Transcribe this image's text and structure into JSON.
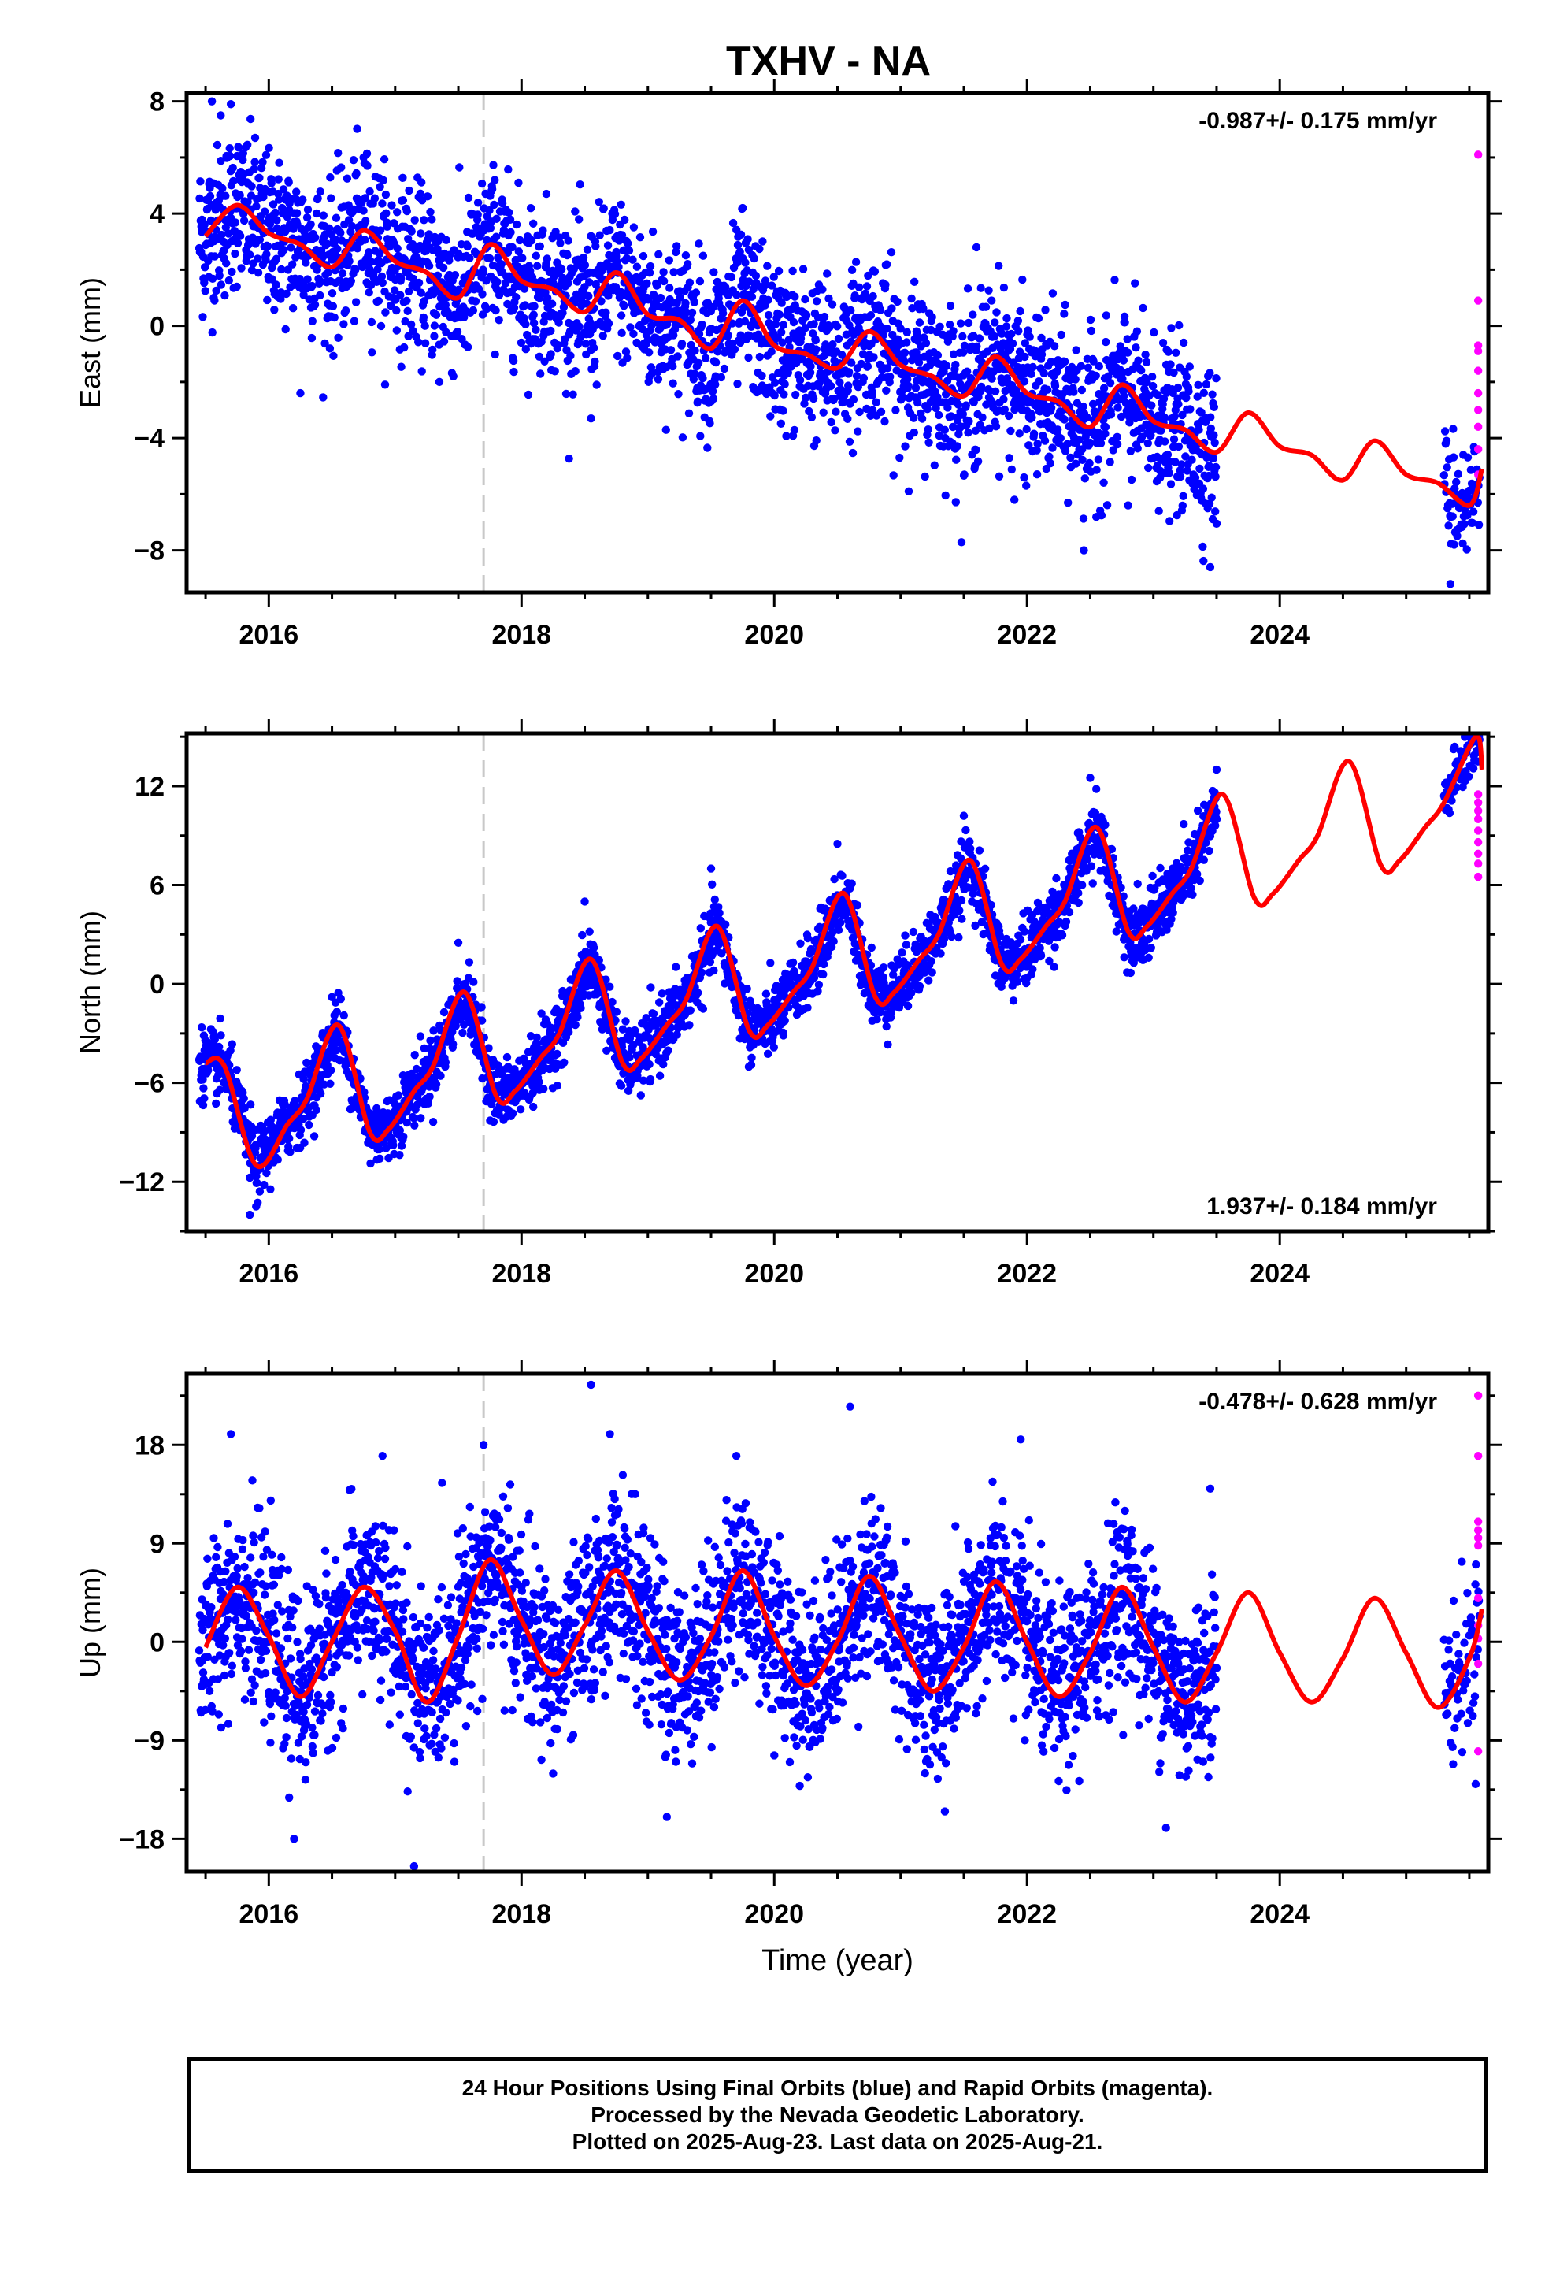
{
  "title": "TXHV - NA",
  "footer": {
    "line1": "24 Hour Positions Using Final Orbits (blue) and Rapid Orbits (magenta).",
    "line2": "Processed by the Nevada Geodetic Laboratory.",
    "line3": "Plotted on 2025-Aug-23. Last data on 2025-Aug-21."
  },
  "colors": {
    "final": "#0000ff",
    "rapid": "#ff00ff",
    "model": "#ff0000",
    "event": "#c8c8c8"
  },
  "chart_data": [
    {
      "type": "scatter",
      "component": "East",
      "ylabel": "East (mm)",
      "xlabel": "",
      "xlim": [
        2015.35,
        2025.65
      ],
      "ylim": [
        -9.5,
        8.3
      ],
      "yticks": [
        -8,
        -4,
        0,
        4,
        8
      ],
      "xticks": [
        2016,
        2018,
        2020,
        2022,
        2024
      ],
      "rate_label": "-0.987+/- 0.175 mm/yr",
      "rate_position": "top-right",
      "event_line_x": 2017.7,
      "model": {
        "x": [
          2015.5,
          2015.75,
          2016.0,
          2016.25,
          2016.5,
          2016.75,
          2017.0,
          2017.25,
          2017.5,
          2017.75,
          2018.0,
          2018.25,
          2018.5,
          2018.75,
          2019.0,
          2019.25,
          2019.5,
          2019.75,
          2020.0,
          2020.25,
          2020.5,
          2020.75,
          2021.0,
          2021.25,
          2021.5,
          2021.75,
          2022.0,
          2022.25,
          2022.5,
          2022.75,
          2023.0,
          2023.25,
          2023.5,
          2023.75,
          2024.0,
          2024.25,
          2024.5,
          2024.75,
          2025.0,
          2025.25,
          2025.5,
          2025.6
        ],
        "y": [
          3.2,
          4.3,
          3.3,
          2.9,
          2.1,
          3.4,
          2.3,
          1.9,
          1.0,
          2.9,
          1.6,
          1.3,
          0.5,
          1.9,
          0.4,
          0.2,
          -0.8,
          0.9,
          -0.7,
          -1.0,
          -1.5,
          -0.2,
          -1.4,
          -1.8,
          -2.5,
          -1.1,
          -2.4,
          -2.7,
          -3.6,
          -2.1,
          -3.4,
          -3.7,
          -4.5,
          -3.1,
          -4.3,
          -4.6,
          -5.5,
          -4.1,
          -5.3,
          -5.6,
          -6.4,
          -5.1
        ]
      },
      "final": {
        "segments": [
          {
            "x": [
              2015.45,
              2023.5
            ],
            "stride": 0.0028,
            "noise": 1.4
          },
          {
            "x": [
              2025.3,
              2025.58
            ],
            "stride": 0.004,
            "noise": 1.1
          }
        ],
        "outliers": [
          {
            "x": 2015.55,
            "y": 8.0
          },
          {
            "x": 2015.62,
            "y": 7.5
          },
          {
            "x": 2015.7,
            "y": 7.9
          },
          {
            "x": 2016.25,
            "y": -2.4
          },
          {
            "x": 2016.75,
            "y": 6.0
          },
          {
            "x": 2017.35,
            "y": -2.0
          },
          {
            "x": 2018.55,
            "y": -3.3
          },
          {
            "x": 2019.75,
            "y": 4.2
          },
          {
            "x": 2021.6,
            "y": 2.8
          },
          {
            "x": 2021.9,
            "y": -6.2
          },
          {
            "x": 2022.45,
            "y": -8.0
          },
          {
            "x": 2022.8,
            "y": -6.4
          },
          {
            "x": 2023.45,
            "y": -8.6
          },
          {
            "x": 2025.35,
            "y": -9.2
          }
        ]
      },
      "rapid": {
        "x": 2025.57,
        "y": [
          6.1,
          0.9,
          -0.7,
          -0.9,
          -1.6,
          -2.4,
          -3.0,
          -3.6,
          -4.4,
          -5.3
        ]
      }
    },
    {
      "type": "scatter",
      "component": "North",
      "ylabel": "North (mm)",
      "xlabel": "",
      "xlim": [
        2015.35,
        2025.65
      ],
      "ylim": [
        -15,
        15.2
      ],
      "yticks": [
        -12,
        -6,
        0,
        6,
        12
      ],
      "xticks": [
        2016,
        2018,
        2020,
        2022,
        2024
      ],
      "rate_label": "1.937+/- 0.184 mm/yr",
      "rate_position": "bottom-right",
      "event_line_x": 2017.7,
      "model": {
        "x": [
          2015.5,
          2015.65,
          2015.9,
          2016.15,
          2016.3,
          2016.55,
          2016.8,
          2016.95,
          2017.15,
          2017.3,
          2017.55,
          2017.8,
          2017.95,
          2018.15,
          2018.3,
          2018.55,
          2018.8,
          2018.95,
          2019.15,
          2019.3,
          2019.55,
          2019.8,
          2019.95,
          2020.15,
          2020.3,
          2020.55,
          2020.8,
          2020.95,
          2021.15,
          2021.3,
          2021.55,
          2021.8,
          2021.95,
          2022.15,
          2022.3,
          2022.55,
          2022.8,
          2022.95,
          2023.15,
          2023.3,
          2023.55,
          2023.8,
          2023.95,
          2024.15,
          2024.3,
          2024.55,
          2024.8,
          2024.95,
          2025.15,
          2025.3,
          2025.55,
          2025.6
        ],
        "y": [
          -4.8,
          -5.0,
          -11.0,
          -8.5,
          -7.0,
          -2.5,
          -9.0,
          -8.8,
          -6.5,
          -5.0,
          -0.5,
          -6.8,
          -6.5,
          -4.5,
          -3.0,
          1.5,
          -4.8,
          -4.5,
          -2.5,
          -1.0,
          3.5,
          -2.8,
          -2.5,
          -0.5,
          1.0,
          5.5,
          -0.8,
          -0.5,
          1.5,
          3.0,
          7.5,
          1.2,
          1.5,
          3.5,
          5.0,
          9.5,
          3.2,
          3.5,
          5.5,
          7.0,
          11.5,
          5.2,
          5.5,
          7.5,
          9.0,
          13.5,
          7.2,
          7.5,
          9.5,
          11.0,
          15.0,
          13.0
        ]
      },
      "final": {
        "segments": [
          {
            "x": [
              2015.45,
              2023.5
            ],
            "stride": 0.0028,
            "noise": 1.0
          },
          {
            "x": [
              2025.3,
              2025.58
            ],
            "stride": 0.004,
            "noise": 0.9
          }
        ],
        "outliers": [
          {
            "x": 2015.85,
            "y": -14.0
          },
          {
            "x": 2015.9,
            "y": -13.5
          },
          {
            "x": 2016.5,
            "y": -0.8
          },
          {
            "x": 2017.5,
            "y": 2.5
          },
          {
            "x": 2018.5,
            "y": 5.0
          },
          {
            "x": 2019.5,
            "y": 7.0
          },
          {
            "x": 2020.5,
            "y": 8.5
          },
          {
            "x": 2021.5,
            "y": 10.2
          },
          {
            "x": 2022.5,
            "y": 12.5
          },
          {
            "x": 2023.5,
            "y": 13.0
          }
        ]
      },
      "rapid": {
        "x": 2025.57,
        "y": [
          11.5,
          11.0,
          10.5,
          10.0,
          9.3,
          8.6,
          7.9,
          7.3,
          6.5
        ]
      }
    },
    {
      "type": "scatter",
      "component": "Up",
      "ylabel": "Up (mm)",
      "xlabel": "Time (year)",
      "xlim": [
        2015.35,
        2025.65
      ],
      "ylim": [
        -21,
        24.5
      ],
      "yticks": [
        -18,
        -9,
        0,
        9,
        18
      ],
      "xticks": [
        2016,
        2018,
        2020,
        2022,
        2024
      ],
      "rate_label": "-0.478+/- 0.628 mm/yr",
      "rate_position": "top-right",
      "event_line_x": 2017.7,
      "model": {
        "x": [
          2015.5,
          2015.75,
          2016.0,
          2016.25,
          2016.5,
          2016.75,
          2017.0,
          2017.25,
          2017.5,
          2017.75,
          2018.0,
          2018.25,
          2018.5,
          2018.75,
          2019.0,
          2019.25,
          2019.5,
          2019.75,
          2020.0,
          2020.25,
          2020.5,
          2020.75,
          2021.0,
          2021.25,
          2021.5,
          2021.75,
          2022.0,
          2022.25,
          2022.5,
          2022.75,
          2023.0,
          2023.25,
          2023.5,
          2023.75,
          2024.0,
          2024.25,
          2024.5,
          2024.75,
          2025.0,
          2025.25,
          2025.5,
          2025.6
        ],
        "y": [
          -0.5,
          5.0,
          0.5,
          -5.0,
          0.0,
          5.0,
          1.0,
          -5.5,
          0.5,
          7.5,
          2.0,
          -3.0,
          1.5,
          6.5,
          1.0,
          -3.5,
          0.5,
          6.5,
          0.5,
          -4.0,
          0.0,
          6.0,
          0.5,
          -4.5,
          -0.5,
          5.5,
          0.0,
          -5.0,
          -1.0,
          5.0,
          -0.5,
          -5.5,
          -1.0,
          4.5,
          -1.0,
          -5.5,
          -1.5,
          4.0,
          -1.0,
          -6.0,
          -1.5,
          3.0
        ]
      },
      "final": {
        "segments": [
          {
            "x": [
              2015.45,
              2023.5
            ],
            "stride": 0.0028,
            "noise": 4.0
          },
          {
            "x": [
              2025.3,
              2025.58
            ],
            "stride": 0.004,
            "noise": 3.5
          }
        ],
        "outliers": [
          {
            "x": 2015.7,
            "y": 19.0
          },
          {
            "x": 2016.2,
            "y": -18.0
          },
          {
            "x": 2016.9,
            "y": 17.0
          },
          {
            "x": 2017.15,
            "y": -20.5
          },
          {
            "x": 2017.7,
            "y": 18.0
          },
          {
            "x": 2018.55,
            "y": 23.5
          },
          {
            "x": 2018.7,
            "y": 19.0
          },
          {
            "x": 2019.15,
            "y": -16.0
          },
          {
            "x": 2019.7,
            "y": 17.0
          },
          {
            "x": 2020.6,
            "y": 21.5
          },
          {
            "x": 2021.35,
            "y": -15.5
          },
          {
            "x": 2021.95,
            "y": 18.5
          },
          {
            "x": 2023.1,
            "y": -17.0
          },
          {
            "x": 2023.45,
            "y": 14.0
          },
          {
            "x": 2025.55,
            "y": -13.0
          }
        ]
      },
      "rapid": {
        "x": 2025.57,
        "y": [
          22.5,
          17.0,
          11.0,
          10.2,
          9.5,
          8.8,
          4.0,
          1.5,
          0.3,
          -2.0,
          -10.0
        ]
      }
    }
  ]
}
